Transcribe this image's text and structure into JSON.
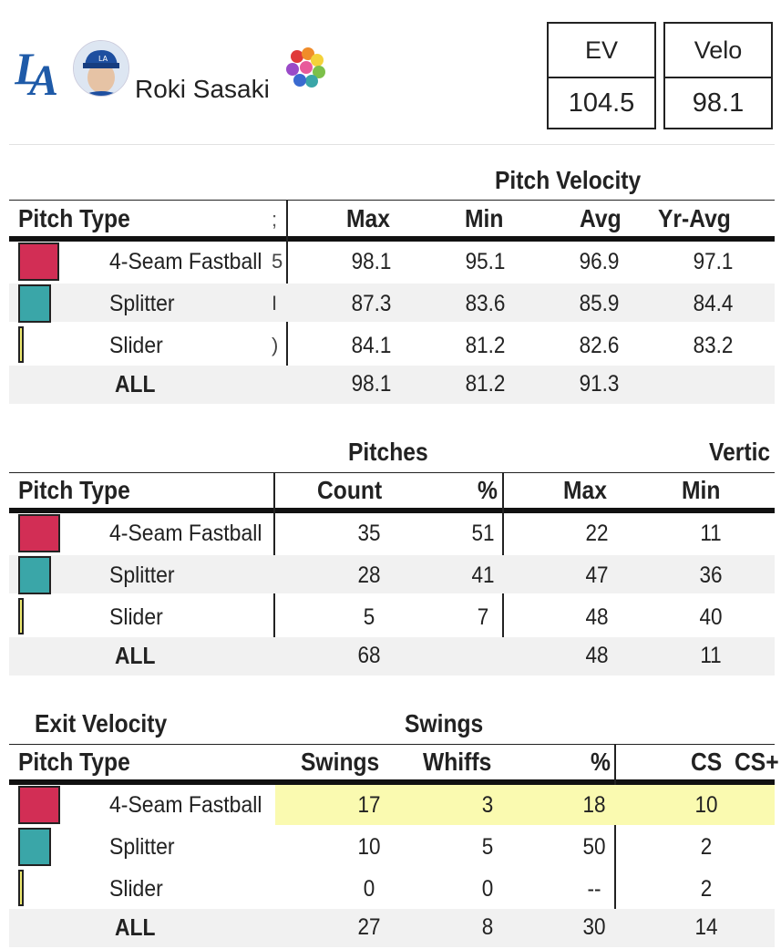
{
  "header": {
    "player_name": "Roki Sasaki",
    "team_logo": "LA",
    "stats": [
      {
        "label": "EV",
        "value": "104.5"
      },
      {
        "label": "Velo",
        "value": "98.1"
      }
    ]
  },
  "colors": {
    "four_seam": "#d22e55",
    "splitter": "#3aa6a8",
    "slider": "#eeea70",
    "highlight": "#fafab0",
    "alt_row": "#f1f1f1"
  },
  "velocity": {
    "title": "Pitch Velocity",
    "headers": [
      "Pitch Type",
      "Max",
      "Min",
      "Avg",
      "Yr-Avg"
    ],
    "rows": [
      {
        "name": "4-Seam Fastball",
        "trunc": "5",
        "max": "98.1",
        "min": "95.1",
        "avg": "96.9",
        "yr": "97.1"
      },
      {
        "name": "Splitter",
        "trunc": "I",
        "max": "87.3",
        "min": "83.6",
        "avg": "85.9",
        "yr": "84.4"
      },
      {
        "name": "Slider",
        "trunc": ")",
        "max": "84.1",
        "min": "81.2",
        "avg": "82.6",
        "yr": "83.2"
      },
      {
        "name": "ALL",
        "trunc": "",
        "max": "98.1",
        "min": "81.2",
        "avg": "91.3",
        "yr": ""
      }
    ]
  },
  "pitches": {
    "title": "Pitches",
    "title2": "Vertic",
    "headers": [
      "Pitch Type",
      "Count",
      "%",
      "Max",
      "Min"
    ],
    "rows": [
      {
        "name": "4-Seam Fastball",
        "count": "35",
        "pct": "51",
        "max": "22",
        "min": "11"
      },
      {
        "name": "Splitter",
        "count": "28",
        "pct": "41",
        "max": "47",
        "min": "36"
      },
      {
        "name": "Slider",
        "count": "5",
        "pct": "7",
        "max": "48",
        "min": "40"
      },
      {
        "name": "ALL",
        "count": "68",
        "pct": "",
        "max": "48",
        "min": "11"
      }
    ]
  },
  "swings": {
    "title_left": "Exit Velocity",
    "title": "Swings",
    "headers": [
      "Pitch Type",
      "Swings",
      "Whiffs",
      "%",
      "CS",
      "CS+"
    ],
    "rows": [
      {
        "name": "4-Seam Fastball",
        "swings": "17",
        "whiffs": "3",
        "pct": "18",
        "cs": "10"
      },
      {
        "name": "Splitter",
        "swings": "10",
        "whiffs": "5",
        "pct": "50",
        "cs": "2"
      },
      {
        "name": "Slider",
        "swings": "0",
        "whiffs": "0",
        "pct": "--",
        "cs": "2"
      },
      {
        "name": "ALL",
        "swings": "27",
        "whiffs": "8",
        "pct": "30",
        "cs": "14"
      }
    ]
  }
}
